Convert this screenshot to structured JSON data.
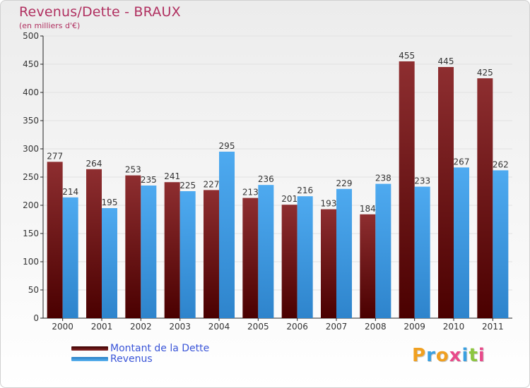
{
  "header": {
    "title": "Revenus/Dette - BRAUX",
    "subtitle": "(en milliers d'€)"
  },
  "chart_data": {
    "type": "bar",
    "title": "Revenus/Dette - BRAUX",
    "subtitle": "(en milliers d'€)",
    "categories": [
      "2000",
      "2001",
      "2002",
      "2003",
      "2004",
      "2005",
      "2006",
      "2007",
      "2008",
      "2009",
      "2010",
      "2011"
    ],
    "series": [
      {
        "name": "Montant de la Dette",
        "color": "#7a1f22",
        "values": [
          277,
          264,
          253,
          241,
          227,
          213,
          201,
          193,
          184,
          455,
          445,
          425
        ]
      },
      {
        "name": "Revenus",
        "color": "#3f9fe4",
        "values": [
          214,
          195,
          235,
          225,
          295,
          236,
          216,
          229,
          238,
          233,
          267,
          262
        ]
      }
    ],
    "yticks": [
      0,
      50,
      100,
      150,
      200,
      250,
      300,
      350,
      400,
      450,
      500
    ],
    "ylim": [
      0,
      500
    ],
    "grid": true,
    "legend_position": "bottom-left"
  },
  "legend": {
    "items": [
      {
        "label": "Montant de la Dette",
        "color": "#7a1f22"
      },
      {
        "label": "Revenus",
        "color": "#3f9fe4"
      }
    ]
  },
  "logo": {
    "letters": [
      "P",
      "r",
      "o",
      "x",
      "i",
      "t",
      "i"
    ],
    "colors": [
      "#f0a020",
      "#3aa0e0",
      "#f0a020",
      "#e84a8a",
      "#3aa0e0",
      "#8cc63f",
      "#e84a8a"
    ]
  }
}
